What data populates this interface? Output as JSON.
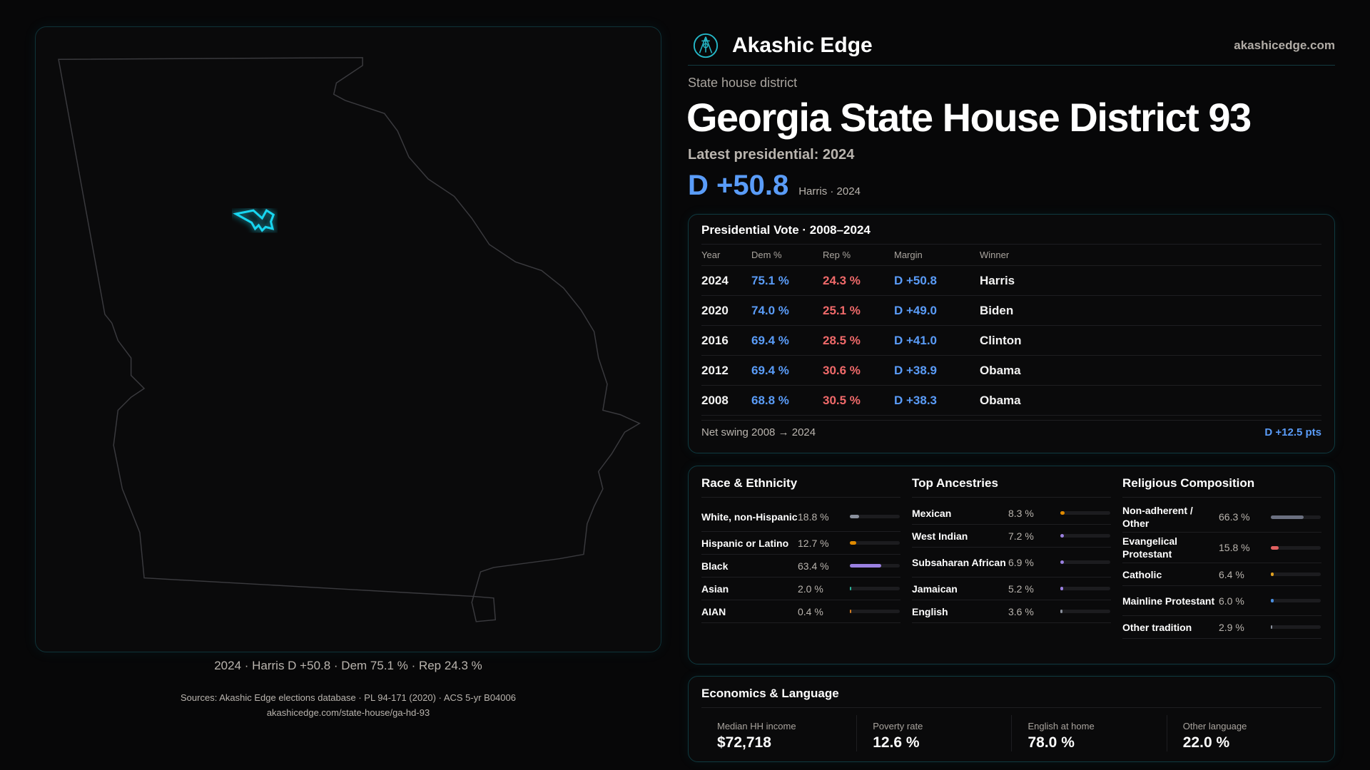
{
  "brand": {
    "name": "Akashic Edge",
    "site": "akashicedge.com",
    "logo_icon": "compass-key-emblem-icon"
  },
  "header": {
    "kind": "State house district",
    "title": "Georgia State House District 93",
    "latest": "Latest presidential: 2024",
    "margin": "D +50.8",
    "margin_sub": "Harris · 2024"
  },
  "map": {
    "caption": "2024 · Harris D +50.8 · Dem 75.1 % · Rep 24.3 %",
    "highlight_color": "#18d6f0"
  },
  "presidential": {
    "title": "Presidential Vote · 2008–2024",
    "columns": [
      "Year",
      "Dem %",
      "Rep %",
      "Margin",
      "Winner"
    ],
    "rows": [
      {
        "year": "2024",
        "dem": "75.1 %",
        "rep": "24.3 %",
        "margin": "D +50.8",
        "winner": "Harris"
      },
      {
        "year": "2020",
        "dem": "74.0 %",
        "rep": "25.1 %",
        "margin": "D +49.0",
        "winner": "Biden"
      },
      {
        "year": "2016",
        "dem": "69.4 %",
        "rep": "28.5 %",
        "margin": "D +41.0",
        "winner": "Clinton"
      },
      {
        "year": "2012",
        "dem": "69.4 %",
        "rep": "30.6 %",
        "margin": "D +38.9",
        "winner": "Obama"
      },
      {
        "year": "2008",
        "dem": "68.8 %",
        "rep": "30.5 %",
        "margin": "D +38.3",
        "winner": "Obama"
      }
    ],
    "swing_label": "Net swing 2008 → 2024",
    "swing_value": "D +12.5 pts"
  },
  "demographics": [
    {
      "title": "Race & Ethnicity",
      "items": [
        {
          "label": "White, non-Hispanic",
          "pct": "18.8 %",
          "value": 18.8,
          "color": "#8a909c",
          "tall": true
        },
        {
          "label": "Hispanic or Latino",
          "pct": "12.7 %",
          "value": 12.7,
          "color": "#e08a00"
        },
        {
          "label": "Black",
          "pct": "63.4 %",
          "value": 63.4,
          "color": "#9a80e0"
        },
        {
          "label": "Asian",
          "pct": "2.0 %",
          "value": 2.0,
          "color": "#2bb59a"
        },
        {
          "label": "AIAN",
          "pct": "0.4 %",
          "value": 0.4,
          "color": "#d07a20"
        }
      ]
    },
    {
      "title": "Top Ancestries",
      "items": [
        {
          "label": "Mexican",
          "pct": "8.3 %",
          "value": 8.3,
          "color": "#e08a00"
        },
        {
          "label": "West Indian",
          "pct": "7.2 %",
          "value": 7.2,
          "color": "#9a80e0"
        },
        {
          "label": "Subsaharan African",
          "pct": "6.9 %",
          "value": 6.9,
          "color": "#9a80e0",
          "tall": true
        },
        {
          "label": "Jamaican",
          "pct": "5.2 %",
          "value": 5.2,
          "color": "#9a80e0"
        },
        {
          "label": "English",
          "pct": "3.6 %",
          "value": 3.6,
          "color": "#8a909c"
        }
      ]
    },
    {
      "title": "Religious Composition",
      "items": [
        {
          "label": "Non-adherent / Other",
          "pct": "66.3 %",
          "value": 66.3,
          "color": "#6b7080",
          "tall": true
        },
        {
          "label": "Evangelical Protestant",
          "pct": "15.8 %",
          "value": 15.8,
          "color": "#e06060",
          "tall": true
        },
        {
          "label": "Catholic",
          "pct": "6.4 %",
          "value": 6.4,
          "color": "#e0a020"
        },
        {
          "label": "Mainline Protestant",
          "pct": "6.0 %",
          "value": 6.0,
          "color": "#4a8fe0",
          "tall": true
        },
        {
          "label": "Other tradition",
          "pct": "2.9 %",
          "value": 2.9,
          "color": "#8a909c"
        }
      ]
    }
  ],
  "economics": {
    "title": "Economics & Language",
    "cells": [
      {
        "label": "Median HH income",
        "value": "$72,718"
      },
      {
        "label": "Poverty rate",
        "value": "12.6 %"
      },
      {
        "label": "English at home",
        "value": "78.0 %"
      },
      {
        "label": "Other language",
        "value": "22.0 %"
      }
    ]
  },
  "footer": {
    "sources": "Sources: Akashic Edge elections database · PL 94-171 (2020) · ACS 5-yr B04006",
    "url": "akashicedge.com/state-house/ga-hd-93"
  }
}
